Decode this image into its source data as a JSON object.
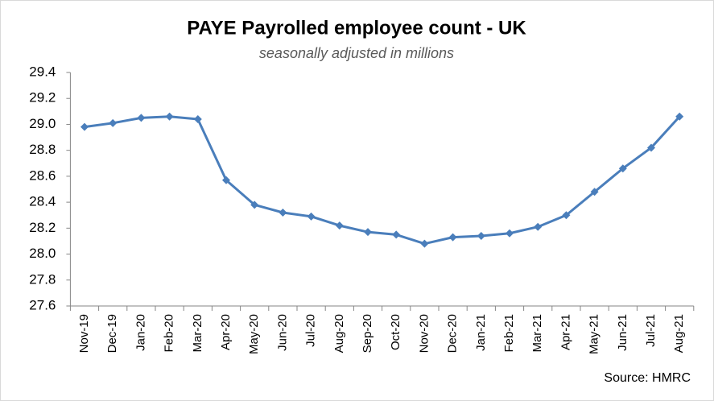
{
  "chart_data": {
    "type": "line",
    "title": "PAYE Payrolled employee count - UK",
    "subtitle": "seasonally adjusted in millions",
    "source": "Source: HMRC",
    "categories": [
      "Nov-19",
      "Dec-19",
      "Jan-20",
      "Feb-20",
      "Mar-20",
      "Apr-20",
      "May-20",
      "Jun-20",
      "Jul-20",
      "Aug-20",
      "Sep-20",
      "Oct-20",
      "Nov-20",
      "Dec-20",
      "Jan-21",
      "Feb-21",
      "Mar-21",
      "Apr-21",
      "May-21",
      "Jun-21",
      "Jul-21",
      "Aug-21"
    ],
    "values": [
      28.98,
      29.01,
      29.05,
      29.06,
      29.04,
      28.57,
      28.38,
      28.32,
      28.29,
      28.22,
      28.17,
      28.15,
      28.08,
      28.13,
      28.14,
      28.16,
      28.21,
      28.3,
      28.48,
      28.66,
      28.82,
      29.06
    ],
    "color": "#4a7ebb",
    "ylim": [
      27.6,
      29.4
    ],
    "yticks": [
      27.6,
      27.8,
      {
        "value": 28,
        "label": "28.0"
      },
      28.2,
      28.4,
      28.6,
      28.8,
      {
        "value": 29,
        "label": "29.0"
      },
      29.2,
      29.4
    ],
    "grid": false
  }
}
